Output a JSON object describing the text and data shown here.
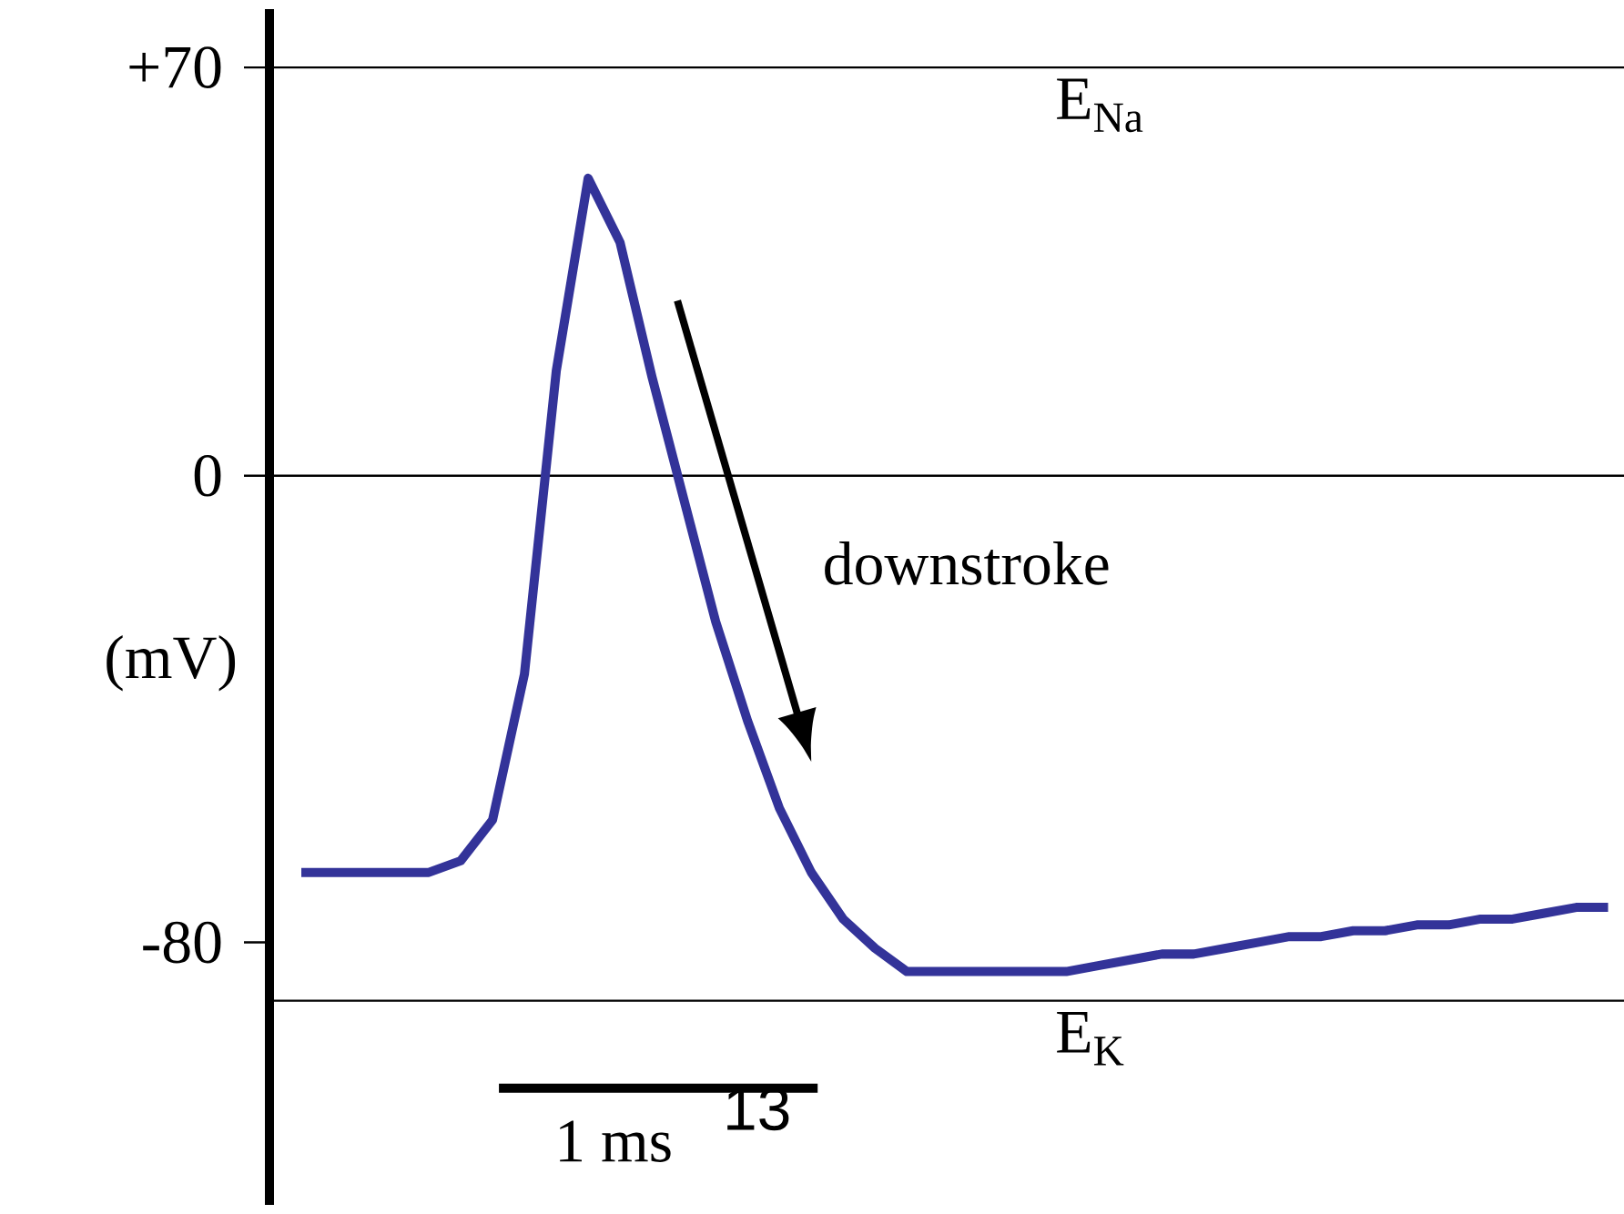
{
  "chart_data": {
    "type": "line",
    "ylabel": "(mV)",
    "categories": [
      null,
      null,
      null,
      null,
      null,
      null,
      null,
      null,
      null,
      null,
      null,
      null,
      null,
      null,
      null,
      null,
      null,
      null,
      null,
      null,
      null,
      null,
      null,
      null,
      null,
      null,
      null,
      null,
      null,
      null,
      null,
      null,
      null,
      null,
      null,
      null,
      null,
      null,
      null,
      null,
      null,
      null
    ],
    "series": [
      {
        "color": "#333399",
        "values": [
          -68,
          -68,
          -68,
          -68,
          -68,
          -66,
          -59,
          -34,
          18,
          51,
          40,
          17,
          -4,
          -25,
          -42,
          -57,
          -68,
          -76,
          -81,
          -85,
          -85,
          -85,
          -85,
          -85,
          -85,
          -84,
          -83,
          -82,
          -82,
          -81,
          -80,
          -79,
          -79,
          -78,
          -78,
          -77,
          -77,
          -76,
          -76,
          -75,
          -74,
          -74
        ]
      }
    ],
    "ylim": [
      -125,
      80
    ],
    "yticks": [
      {
        "value": 70,
        "label": "+70"
      },
      {
        "value": 0,
        "label": "0"
      },
      {
        "value": -80,
        "label": "-80"
      }
    ],
    "tick_labels": "y",
    "grid": false,
    "marker": "none",
    "line_style": "solid",
    "ref_lines": [
      {
        "axis": "y",
        "value": 70,
        "label": "E$_{Na}$",
        "color": "#000000"
      },
      {
        "axis": "y",
        "value": 0,
        "color": "#000000"
      },
      {
        "axis": "y",
        "value": -90,
        "label": "E$_{K}$",
        "color": "#000000"
      }
    ],
    "annotations": [
      "downstroke",
      "1 ms",
      "13"
    ]
  }
}
